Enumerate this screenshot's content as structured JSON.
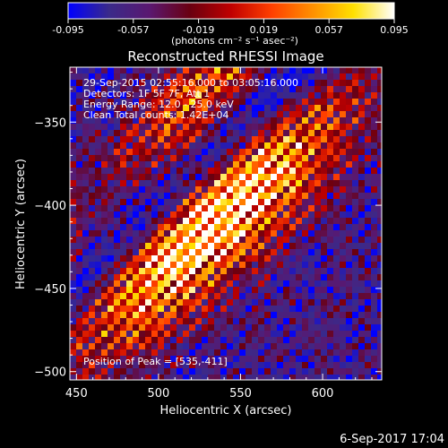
{
  "chart_data": {
    "type": "heatmap",
    "title": "Reconstructed RHESSI Image",
    "xlabel": "Heliocentric X (arcsec)",
    "ylabel": "Heliocentric Y (arcsec)",
    "xlim": [
      446,
      636
    ],
    "ylim": [
      -505,
      -317
    ],
    "x_ticks": [
      450,
      500,
      550,
      600
    ],
    "y_ticks": [
      -350,
      -400,
      -450,
      -500
    ],
    "colorbar": {
      "min": -0.095,
      "max": 0.095,
      "ticks": [
        "-0.095",
        "-0.057",
        "-0.019",
        "0.019",
        "0.057",
        "0.095"
      ],
      "unit_label": "(photons cm⁻² s⁻¹ asec⁻²)",
      "colormap": [
        "#0000ff",
        "#3a2a8a",
        "#5a1870",
        "#6a0010",
        "#c00000",
        "#ff4000",
        "#ff9000",
        "#ffe000",
        "#ffffff"
      ]
    },
    "peak": [
      535,
      -411
    ],
    "annotations": [
      "29-Sep-2015 02:55:16.000 to 03:05:16.000",
      "Detectors: 1F 5F 7F, Att 1",
      "Energy Range: 12.0 - 25.0 keV",
      "Clean    Total counts: 1.42E+04"
    ],
    "peak_label": "Position of Peak = [535,-411]"
  },
  "footer": {
    "timestamp": "6-Sep-2017 17:04"
  }
}
